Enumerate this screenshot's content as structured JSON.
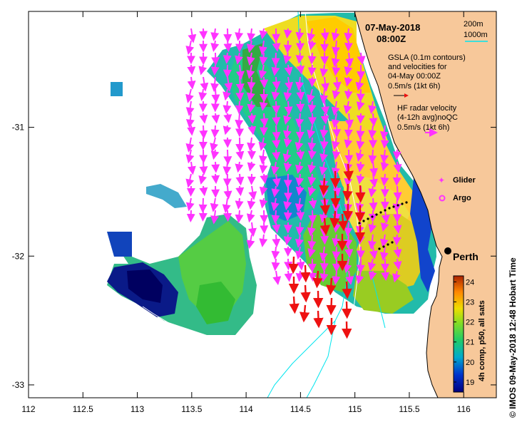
{
  "title": {
    "date": "07-May-2018",
    "time": "08:00Z"
  },
  "place": {
    "name": "Perth"
  },
  "legend": {
    "depth_200": "200m",
    "depth_1000": "1000m",
    "gsla_line1": "GSLA (0.1m contours)",
    "gsla_line2": "and velocities for",
    "gsla_line3": "04-May 00:00Z",
    "gsla_line4": "0.5m/s (1kt 6h)",
    "hf_line1": "HF radar velocity",
    "hf_line2": "(4-12h avg)noQC",
    "hf_line3": "0.5m/s (1kt 6h)",
    "glider": "Glider",
    "argo": "Argo"
  },
  "colorbar": {
    "label": "4h comp, p50, all sats",
    "ticks": [
      "19",
      "20",
      "21",
      "22",
      "23",
      "24"
    ],
    "range": [
      18.5,
      24.3
    ]
  },
  "credit": "© IMOS 09-May-2018 12:48 Hobart Time",
  "axes": {
    "x_ticks": [
      "112",
      "112.5",
      "113",
      "113.5",
      "114",
      "114.5",
      "115",
      "115.5",
      "116"
    ],
    "y_ticks": [
      "-31",
      "-32",
      "-33"
    ],
    "x_range": [
      112,
      116.3
    ],
    "y_range": [
      -33.1,
      -30.1
    ]
  },
  "colors": {
    "land": "#f7c89a",
    "hf_arrow": "#ff33ff",
    "gsla_arrow": "#ee1111",
    "contour_200": "#ffffff",
    "contour_1000": "#00ffff"
  }
}
